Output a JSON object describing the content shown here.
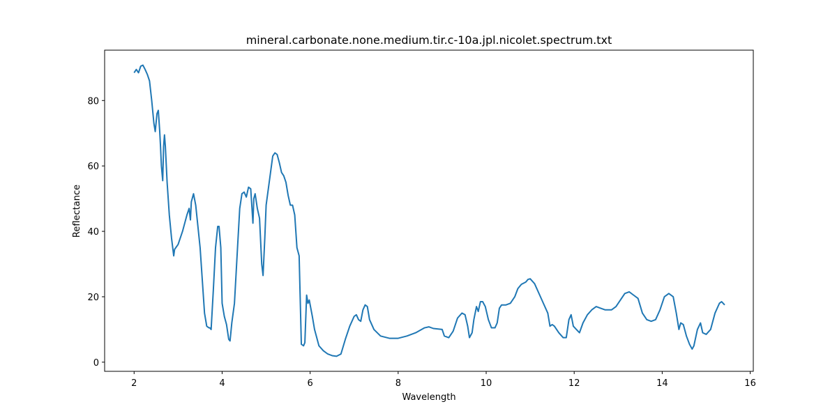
{
  "chart_data": {
    "type": "line",
    "title": "mineral.carbonate.none.medium.tir.c-10a.jpl.nicolet.spectrum.txt",
    "x_label": "Wavelength",
    "y_label": "Reflectance",
    "color": "#1f77b4",
    "xlim": [
      1.33,
      16.07
    ],
    "ylim": [
      -2.8,
      95.4
    ],
    "xticks": [
      2,
      4,
      6,
      8,
      10,
      12,
      14,
      16
    ],
    "yticks": [
      0,
      20,
      40,
      60,
      80
    ],
    "x": [
      2.0,
      2.05,
      2.1,
      2.15,
      2.2,
      2.25,
      2.3,
      2.35,
      2.4,
      2.45,
      2.48,
      2.52,
      2.55,
      2.58,
      2.6,
      2.62,
      2.65,
      2.67,
      2.69,
      2.71,
      2.75,
      2.8,
      2.85,
      2.9,
      2.92,
      3.0,
      3.1,
      3.2,
      3.25,
      3.28,
      3.3,
      3.35,
      3.4,
      3.5,
      3.6,
      3.65,
      3.7,
      3.72,
      3.75,
      3.8,
      3.85,
      3.9,
      3.93,
      3.97,
      4.0,
      4.05,
      4.1,
      4.15,
      4.18,
      4.22,
      4.28,
      4.35,
      4.4,
      4.45,
      4.5,
      4.55,
      4.6,
      4.65,
      4.7,
      4.72,
      4.75,
      4.8,
      4.85,
      4.9,
      4.93,
      4.97,
      5.0,
      5.1,
      5.15,
      5.2,
      5.25,
      5.3,
      5.35,
      5.4,
      5.45,
      5.5,
      5.55,
      5.6,
      5.65,
      5.7,
      5.75,
      5.8,
      5.85,
      5.88,
      5.92,
      5.95,
      5.98,
      6.05,
      6.1,
      6.2,
      6.3,
      6.4,
      6.5,
      6.6,
      6.7,
      6.8,
      6.9,
      7.0,
      7.05,
      7.1,
      7.15,
      7.2,
      7.25,
      7.3,
      7.35,
      7.45,
      7.6,
      7.8,
      8.0,
      8.2,
      8.4,
      8.6,
      8.7,
      8.8,
      9.0,
      9.05,
      9.15,
      9.25,
      9.35,
      9.45,
      9.52,
      9.58,
      9.62,
      9.68,
      9.72,
      9.78,
      9.82,
      9.87,
      9.92,
      9.98,
      10.05,
      10.12,
      10.2,
      10.25,
      10.3,
      10.35,
      10.45,
      10.55,
      10.65,
      10.72,
      10.8,
      10.9,
      10.95,
      11.0,
      11.1,
      11.2,
      11.3,
      11.4,
      11.45,
      11.5,
      11.55,
      11.65,
      11.75,
      11.82,
      11.88,
      11.93,
      11.98,
      12.05,
      12.12,
      12.2,
      12.3,
      12.4,
      12.5,
      12.6,
      12.7,
      12.85,
      12.95,
      13.05,
      13.15,
      13.25,
      13.35,
      13.45,
      13.55,
      13.65,
      13.75,
      13.85,
      13.95,
      14.05,
      14.15,
      14.25,
      14.32,
      14.38,
      14.42,
      14.48,
      14.55,
      14.62,
      14.68,
      14.72,
      14.8,
      14.87,
      14.92,
      15.0,
      15.1,
      15.2,
      15.3,
      15.35,
      15.42
    ],
    "values": [
      88.5,
      89.5,
      88.5,
      90.5,
      90.8,
      89.5,
      88,
      86,
      80,
      73,
      70.5,
      76,
      77,
      71,
      66,
      60,
      55.5,
      66,
      69.5,
      66,
      55,
      45,
      38,
      32.5,
      34.5,
      36,
      40,
      45,
      47,
      43.5,
      49,
      51.5,
      48,
      35,
      15,
      11,
      10.5,
      10.5,
      10,
      22,
      35,
      41.5,
      41.5,
      35,
      18,
      14,
      11.5,
      7,
      6.5,
      12,
      18,
      35,
      47,
      51.5,
      52,
      50.5,
      53.5,
      53,
      42.5,
      50,
      51.5,
      47,
      44,
      30,
      26.5,
      38,
      48,
      58,
      63,
      64,
      63.5,
      61,
      58,
      57,
      55,
      51,
      48,
      48,
      45,
      35,
      32.5,
      5.5,
      5,
      6,
      20.5,
      18,
      19,
      14,
      10,
      5,
      3.5,
      2.5,
      2,
      1.8,
      2.5,
      7,
      11,
      14,
      14.5,
      13,
      12.5,
      16,
      17.5,
      17,
      13,
      10,
      8,
      7.3,
      7.3,
      8,
      9,
      10.5,
      10.8,
      10.3,
      10,
      8,
      7.5,
      9.5,
      13.5,
      15,
      14.5,
      11,
      7.5,
      9,
      13,
      17,
      15.5,
      18.5,
      18.5,
      17,
      13,
      10.5,
      10.5,
      12,
      16.5,
      17.5,
      17.5,
      18,
      20,
      22.5,
      23.8,
      24.5,
      25.3,
      25.5,
      24,
      21,
      18,
      15,
      11,
      11.5,
      11,
      9,
      7.5,
      7.5,
      13,
      14.5,
      11,
      10,
      9,
      12,
      14.5,
      16,
      17,
      16.5,
      16,
      16,
      17,
      19,
      21,
      21.5,
      20.5,
      19.5,
      15,
      13,
      12.5,
      13,
      16,
      20,
      21,
      20,
      15,
      10,
      12,
      11.5,
      8,
      5.5,
      4,
      5,
      10,
      12,
      9,
      8.5,
      10,
      15,
      18,
      18.5,
      17.5
    ]
  }
}
